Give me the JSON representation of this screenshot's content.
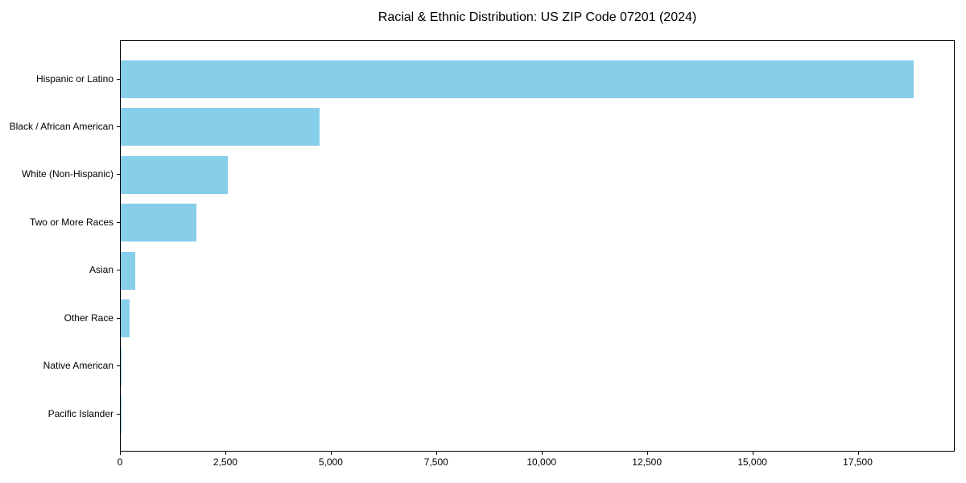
{
  "title": "Racial & Ethnic Distribution: US ZIP Code 07201 (2024)",
  "colors": {
    "bar": "#87CEEB",
    "axis": "#000000",
    "text": "#000000",
    "background": "#ffffff"
  },
  "chart_data": {
    "type": "bar",
    "orientation": "horizontal",
    "title": "Racial & Ethnic Distribution: US ZIP Code 07201 (2024)",
    "categories": [
      "Hispanic or Latino",
      "Black / African American",
      "White (Non-Hispanic)",
      "Two or More Races",
      "Asian",
      "Other Race",
      "Native American",
      "Pacific Islander"
    ],
    "values": [
      18850,
      4730,
      2550,
      1800,
      340,
      220,
      15,
      5
    ],
    "xlabel": "",
    "ylabel": "",
    "xlim": [
      0,
      19800
    ],
    "x_ticks": [
      0,
      2500,
      5000,
      7500,
      10000,
      12500,
      15000,
      17500
    ],
    "x_tick_labels": [
      "0",
      "2,500",
      "5,000",
      "7,500",
      "10,000",
      "12,500",
      "15,000",
      "17,500"
    ],
    "grid": false,
    "legend_position": "none",
    "bar_color": "#87CEEB"
  }
}
